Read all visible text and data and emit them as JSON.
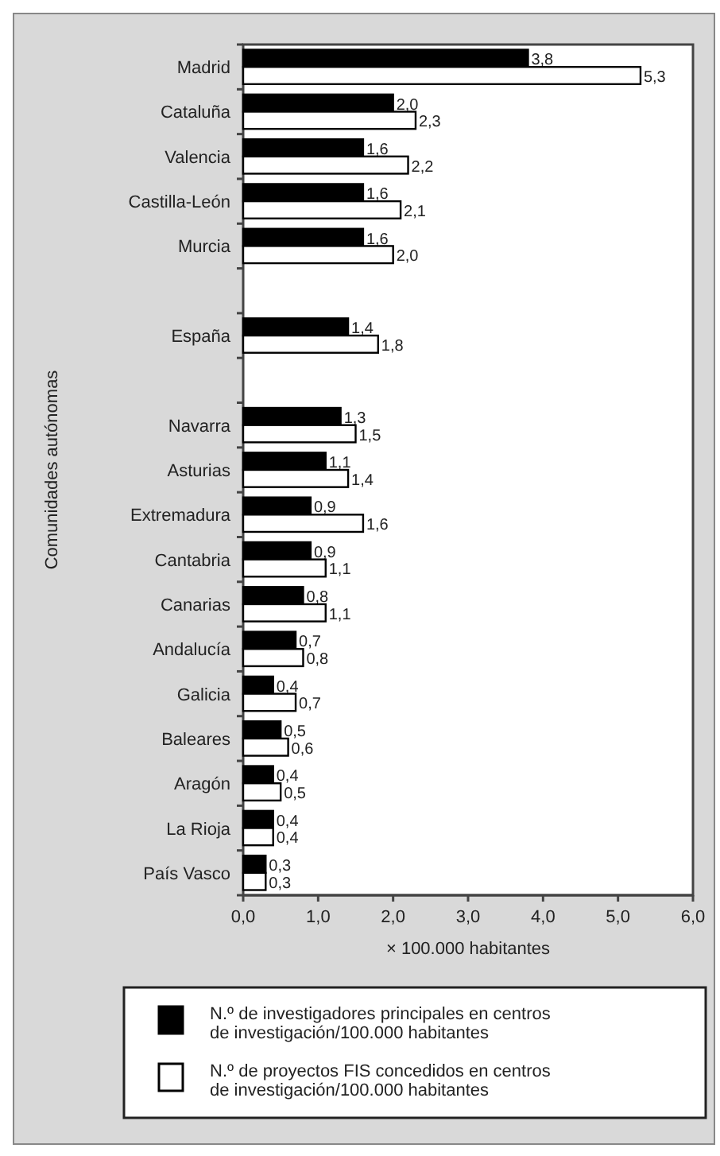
{
  "chart_data": {
    "type": "bar",
    "orientation": "horizontal",
    "ylabel": "Comunidades autónomas",
    "xlabel": "× 100.000 habitantes",
    "categories": [
      "Madrid",
      "Cataluña",
      "Valencia",
      "Castilla-León",
      "Murcia",
      null,
      "España",
      null,
      "Navarra",
      "Asturias",
      "Extremadura",
      "Cantabria",
      "Canarias",
      "Andalucía",
      "Galicia",
      "Baleares",
      "Aragón",
      "La Rioja",
      "País Vasco"
    ],
    "series": [
      {
        "name": "N.º de investigadores principales en centros de investigación/100.000 habitantes",
        "color": "#000000",
        "values": [
          3.8,
          2.0,
          1.6,
          1.6,
          1.6,
          null,
          1.4,
          null,
          1.3,
          1.1,
          0.9,
          0.9,
          0.8,
          0.7,
          0.4,
          0.5,
          0.4,
          0.4,
          0.3
        ],
        "value_labels": [
          "3,8",
          "2,0",
          "1,6",
          "1,6",
          "1,6",
          null,
          "1,4",
          null,
          "1,3",
          "1,1",
          "0,9",
          "0,9",
          "0,8",
          "0,7",
          "0,4",
          "0,5",
          "0,4",
          "0,4",
          "0,3"
        ]
      },
      {
        "name": "N.º de proyectos FIS concedidos en centros de investigación/100.000 habitantes",
        "color": "#ffffff",
        "values": [
          5.3,
          2.3,
          2.2,
          2.1,
          2.0,
          null,
          1.8,
          null,
          1.5,
          1.4,
          1.6,
          1.1,
          1.1,
          0.8,
          0.7,
          0.6,
          0.5,
          0.4,
          0.3
        ],
        "value_labels": [
          "5,3",
          "2,3",
          "2,2",
          "2,1",
          "2,0",
          null,
          "1,8",
          null,
          "1,5",
          "1,4",
          "1,6",
          "1,1",
          "1,1",
          "0,8",
          "0,7",
          "0,6",
          "0,5",
          "0,4",
          "0,3"
        ]
      }
    ],
    "xlim": [
      0,
      6
    ],
    "xticks": [
      {
        "value": 0,
        "label": "0,0"
      },
      {
        "value": 1,
        "label": "1,0"
      },
      {
        "value": 2,
        "label": "2,0"
      },
      {
        "value": 3,
        "label": "3,0"
      },
      {
        "value": 4,
        "label": "4,0"
      },
      {
        "value": 5,
        "label": "5,0"
      },
      {
        "value": 6,
        "label": "6,0"
      }
    ],
    "grid": false,
    "legend": "bottom"
  }
}
